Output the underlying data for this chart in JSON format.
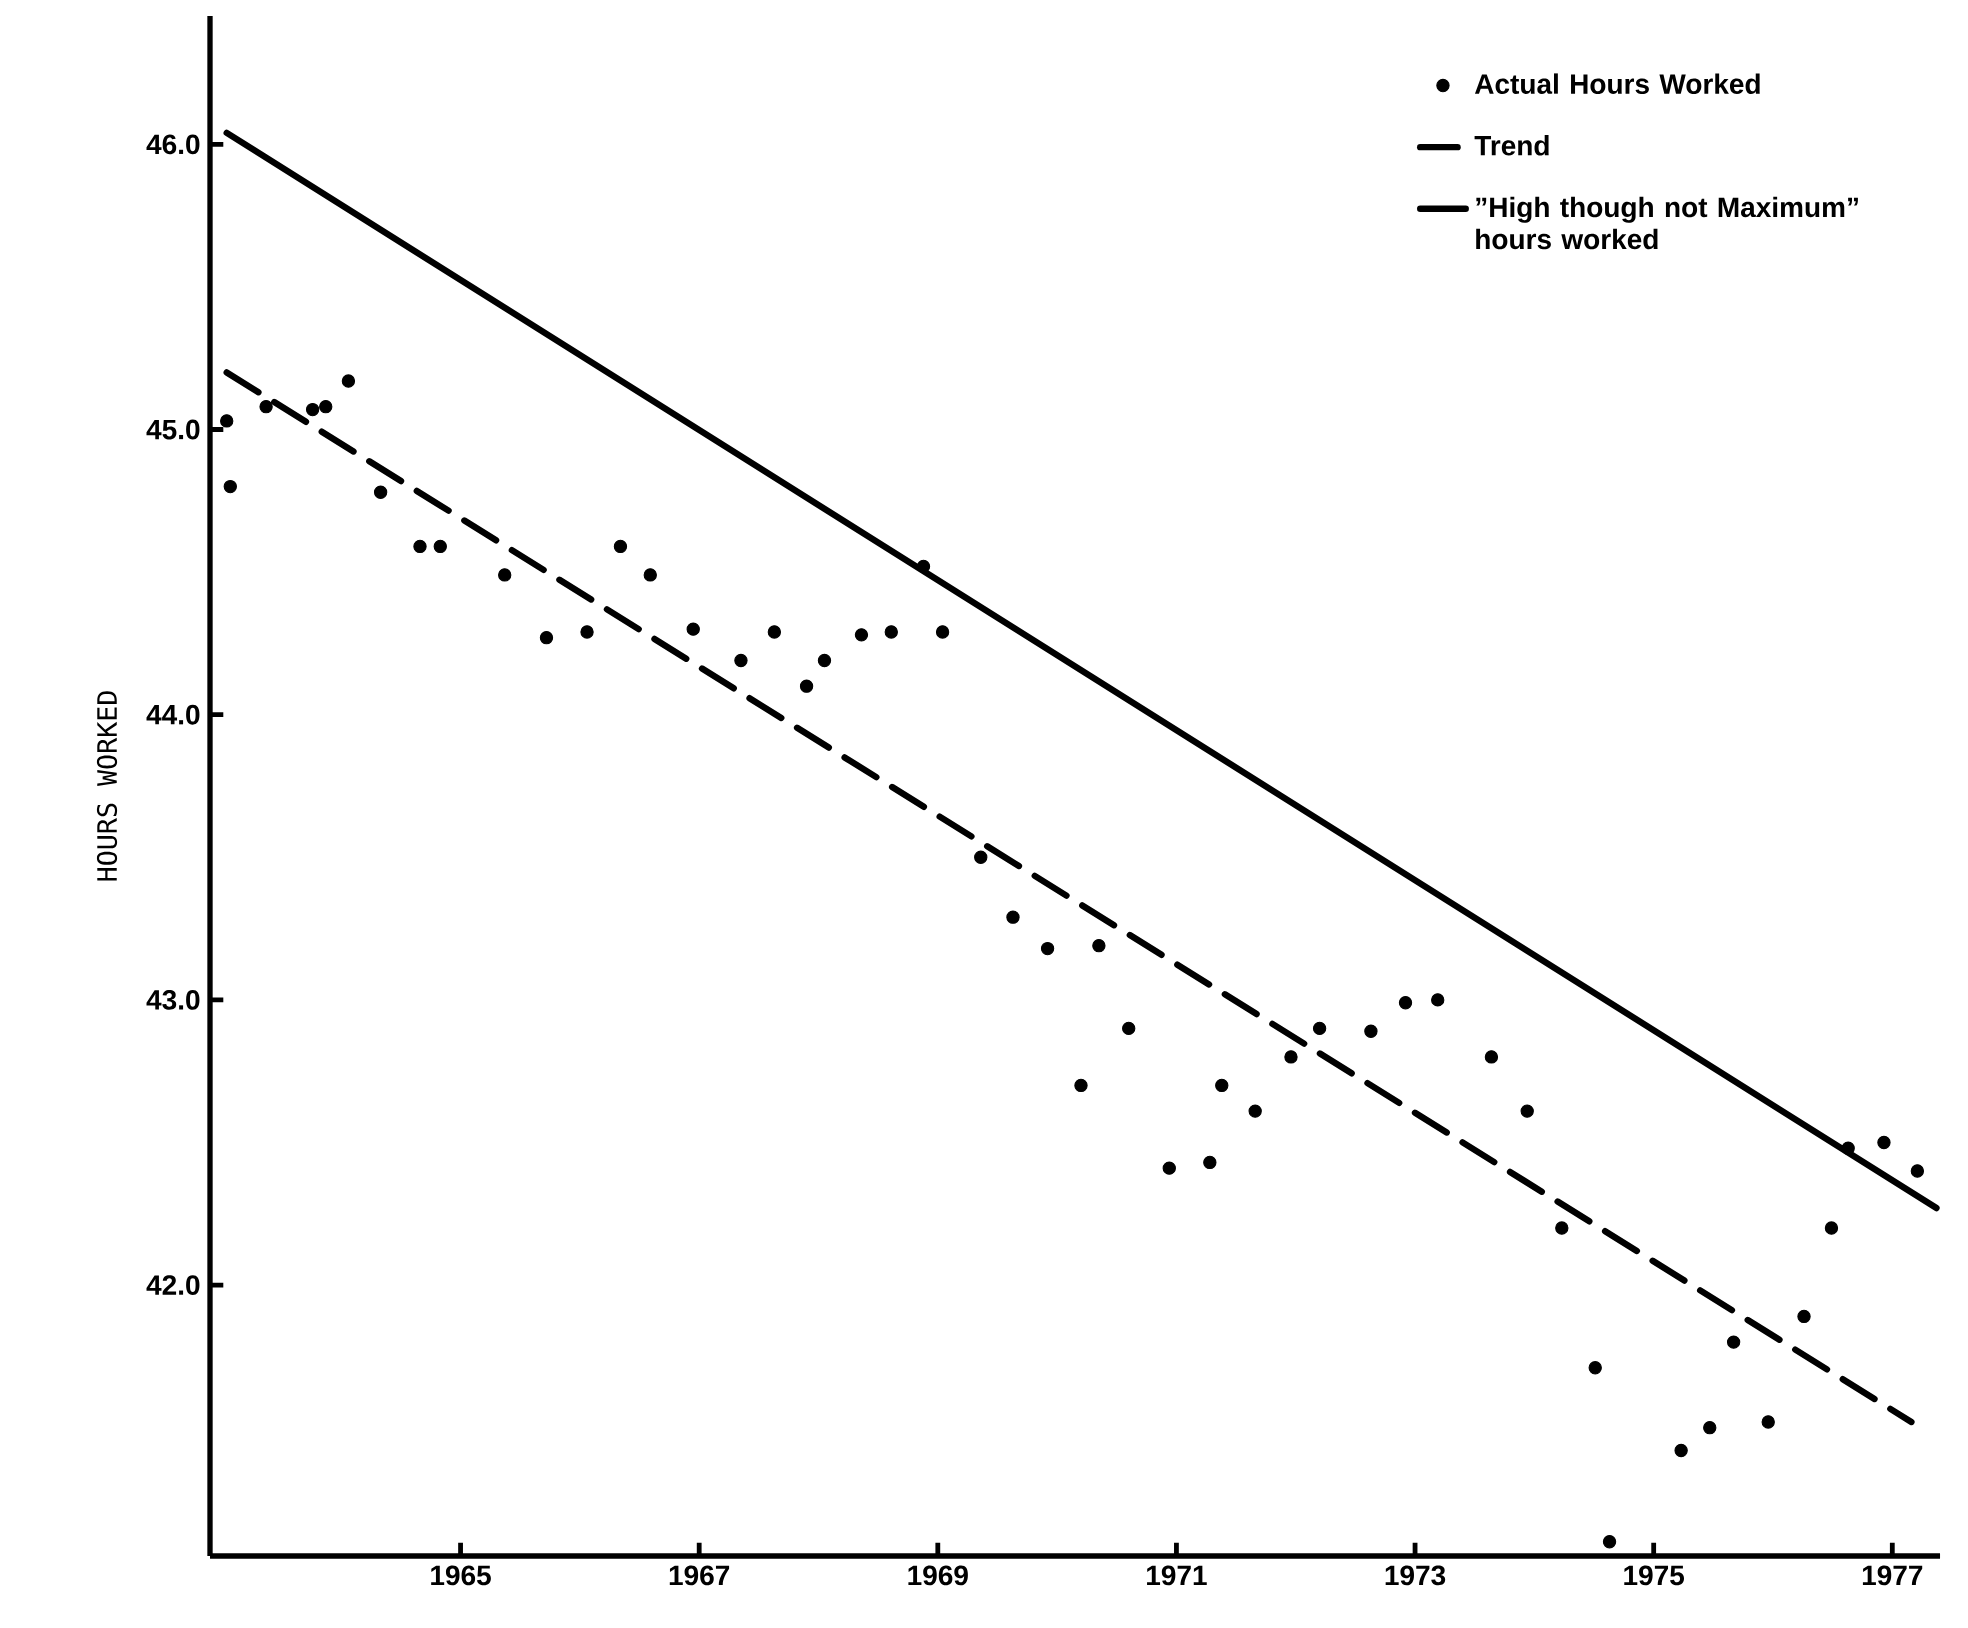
{
  "chart_data": {
    "type": "scatter",
    "ylabel": "HOURS WORKED",
    "xlim": [
      1962.9,
      1977.4
    ],
    "ylim": [
      41.05,
      46.45
    ],
    "xticks": [
      1965,
      1967,
      1969,
      1971,
      1973,
      1975,
      1977
    ],
    "yticks": [
      {
        "value": 42,
        "label": "42.0"
      },
      {
        "value": 43,
        "label": "43.0"
      },
      {
        "value": 44,
        "label": "44.0"
      },
      {
        "value": 45,
        "label": "45.0"
      },
      {
        "value": 46,
        "label": "46.0"
      }
    ],
    "legend": "top right",
    "series": [
      {
        "name": "Actual Hours Worked",
        "marker": "circle",
        "color": "#000000",
        "x": [
          1963.04,
          1963.07,
          1963.37,
          1963.76,
          1963.87,
          1964.06,
          1964.33,
          1964.66,
          1964.83,
          1965.37,
          1965.72,
          1966.06,
          1966.34,
          1966.59,
          1966.95,
          1967.35,
          1967.63,
          1967.9,
          1968.05,
          1968.36,
          1968.61,
          1968.88,
          1969.04,
          1969.36,
          1969.63,
          1969.92,
          1970.2,
          1970.35,
          1970.6,
          1970.94,
          1971.28,
          1971.38,
          1971.66,
          1971.96,
          1972.2,
          1972.63,
          1972.92,
          1973.19,
          1973.64,
          1973.94,
          1974.23,
          1974.51,
          1974.63,
          1975.23,
          1975.47,
          1975.67,
          1975.96,
          1976.26,
          1976.49,
          1976.63,
          1976.93,
          1977.21
        ],
        "values": [
          45.03,
          44.8,
          45.08,
          45.07,
          45.08,
          45.17,
          44.78,
          44.59,
          44.59,
          44.49,
          44.27,
          44.29,
          44.59,
          44.49,
          44.3,
          44.19,
          44.29,
          44.1,
          44.19,
          44.28,
          44.29,
          44.52,
          44.29,
          43.5,
          43.29,
          43.18,
          42.7,
          43.19,
          42.9,
          42.41,
          42.43,
          42.7,
          42.61,
          42.8,
          42.9,
          42.89,
          42.99,
          43.0,
          42.8,
          42.61,
          42.2,
          41.71,
          41.1,
          41.42,
          41.5,
          41.8,
          41.52,
          41.89,
          42.2,
          42.48,
          42.5,
          42.4
        ]
      },
      {
        "name": "Trend",
        "type": "line",
        "line_style": "dashed",
        "color": "#000000",
        "x": [
          1963.04,
          1977.16
        ],
        "values": [
          45.2,
          41.52
        ]
      },
      {
        "name": "”High though not Maximum” hours worked",
        "type": "line",
        "line_style": "solid",
        "color": "#000000",
        "x": [
          1963.04,
          1977.37
        ],
        "values": [
          46.04,
          42.27
        ]
      }
    ]
  }
}
